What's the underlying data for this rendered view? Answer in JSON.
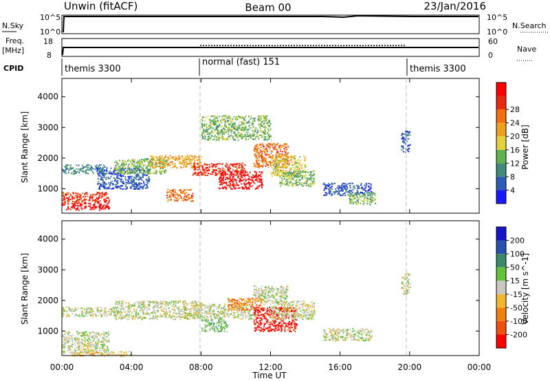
{
  "header": {
    "title_left": "Unwin (fitACF)",
    "title_center": "Beam 00",
    "title_right": "23/Jan/2016"
  },
  "strips": {
    "nsky_label": "N.Sky",
    "nsky_ticks": [
      "10^5",
      "10^0"
    ],
    "nsearch_label": "N.Search",
    "nsearch_ticks": [
      "10^5",
      "10^0"
    ],
    "freq_label": "Freq.",
    "freq_unit": "[MHz]",
    "freq_ticks": [
      "18",
      "8"
    ],
    "nave_label": "Nave",
    "nave_ticks": [
      "60",
      "0"
    ],
    "cpid_label": "CPID",
    "cpid_segments": [
      {
        "label": "themis 3300",
        "start": 0,
        "end": 8
      },
      {
        "label": "normal (fast) 151",
        "start": 8,
        "end": 20
      },
      {
        "label": "themis 3300",
        "start": 20,
        "end": 24
      }
    ]
  },
  "time_axis": {
    "label": "Time UT",
    "ticks": [
      "00:00",
      "04:00",
      "08:00",
      "12:00",
      "16:00",
      "20:00",
      "00:00"
    ],
    "range_hours": [
      0,
      24
    ]
  },
  "power_colorbar": {
    "label": "Power [dB]",
    "ticks": [
      "4",
      "8",
      "12",
      "16",
      "20",
      "24",
      "28"
    ],
    "colors": [
      "#1a1aff",
      "#2e5bb5",
      "#3f8a7a",
      "#61b34f",
      "#e3d23b",
      "#f0a020",
      "#f07010",
      "#e82a12",
      "#ff0000"
    ]
  },
  "velocity_colorbar": {
    "label": "Velocity [m s^-1]",
    "ticks": [
      "200",
      "100",
      "50",
      "15",
      "-15",
      "-50",
      "-100",
      "-200"
    ],
    "colors": [
      "#1414c8",
      "#2a50b0",
      "#3a8a6a",
      "#63c23c",
      "#c8c8c0",
      "#f0b830",
      "#f08010",
      "#f05010",
      "#ff0000"
    ]
  },
  "chart_data": [
    {
      "type": "heatmap",
      "panel": "power",
      "ylabel": "Slant Range [km]",
      "xlabel": "Time UT",
      "yticks": [
        1000,
        2000,
        3000,
        4000
      ],
      "ylim": [
        200,
        4600
      ],
      "xlim_hours": [
        0,
        24
      ],
      "scatter_regions": [
        {
          "t0": 0.0,
          "t1": 2.7,
          "r0": 320,
          "r1": 560,
          "level": 8
        },
        {
          "t0": 0.0,
          "t1": 2.7,
          "r0": 560,
          "r1": 900,
          "level": 7
        },
        {
          "t0": 0.0,
          "t1": 2.5,
          "r0": 1500,
          "r1": 1800,
          "level": 2
        },
        {
          "t0": 2.0,
          "t1": 5.0,
          "r0": 1000,
          "r1": 1700,
          "level": 1
        },
        {
          "t0": 3.0,
          "t1": 6.0,
          "r0": 1500,
          "r1": 2000,
          "level": 3
        },
        {
          "t0": 5.0,
          "t1": 8.0,
          "r0": 1700,
          "r1": 2100,
          "level": 5
        },
        {
          "t0": 6.0,
          "t1": 7.5,
          "r0": 600,
          "r1": 1000,
          "level": 6
        },
        {
          "t0": 7.5,
          "t1": 10.5,
          "r0": 1450,
          "r1": 1850,
          "level": 7
        },
        {
          "t0": 9.0,
          "t1": 11.5,
          "r0": 1000,
          "r1": 1600,
          "level": 8
        },
        {
          "t0": 11.0,
          "t1": 13.0,
          "r0": 1700,
          "r1": 2500,
          "level": 6
        },
        {
          "t0": 12.0,
          "t1": 14.0,
          "r0": 1400,
          "r1": 2100,
          "level": 4
        },
        {
          "t0": 12.5,
          "t1": 14.5,
          "r0": 1100,
          "r1": 1600,
          "level": 3
        },
        {
          "t0": 15.0,
          "t1": 17.8,
          "r0": 800,
          "r1": 1200,
          "level": 1
        },
        {
          "t0": 16.5,
          "t1": 18.0,
          "r0": 500,
          "r1": 900,
          "level": 3
        },
        {
          "t0": 19.5,
          "t1": 20.0,
          "r0": 2200,
          "r1": 2900,
          "level": 1
        },
        {
          "t0": 8.0,
          "t1": 12.0,
          "r0": 2600,
          "r1": 3400,
          "level": 3
        }
      ]
    },
    {
      "type": "heatmap",
      "panel": "velocity",
      "ylabel": "Slant Range [km]",
      "xlabel": "Time UT",
      "yticks": [
        1000,
        2000,
        3000,
        4000
      ],
      "ylim": [
        200,
        4600
      ],
      "xlim_hours": [
        0,
        24
      ],
      "scatter_regions": [
        {
          "t0": 0.0,
          "t1": 2.7,
          "r0": 300,
          "r1": 1000,
          "level": 4
        },
        {
          "t0": 0.0,
          "t1": 3.0,
          "r0": 1500,
          "r1": 1800,
          "level": 4
        },
        {
          "t0": 3.0,
          "t1": 8.0,
          "r0": 1400,
          "r1": 2000,
          "level": 4
        },
        {
          "t0": 7.5,
          "t1": 11.0,
          "r0": 1400,
          "r1": 1900,
          "level": 4
        },
        {
          "t0": 8.0,
          "t1": 9.5,
          "r0": 1000,
          "r1": 1400,
          "level": 3
        },
        {
          "t0": 9.5,
          "t1": 11.5,
          "r0": 1700,
          "r1": 2100,
          "level": 6
        },
        {
          "t0": 11.0,
          "t1": 13.5,
          "r0": 1000,
          "r1": 1800,
          "level": 8
        },
        {
          "t0": 11.0,
          "t1": 13.0,
          "r0": 1900,
          "r1": 2500,
          "level": 4
        },
        {
          "t0": 12.0,
          "t1": 14.5,
          "r0": 1400,
          "r1": 2000,
          "level": 4
        },
        {
          "t0": 15.0,
          "t1": 17.8,
          "r0": 700,
          "r1": 1100,
          "level": 4
        },
        {
          "t0": 19.5,
          "t1": 20.0,
          "r0": 2200,
          "r1": 2900,
          "level": 4
        },
        {
          "t0": 0.5,
          "t1": 4.0,
          "r0": 200,
          "r1": 350,
          "level": 5
        }
      ]
    }
  ]
}
